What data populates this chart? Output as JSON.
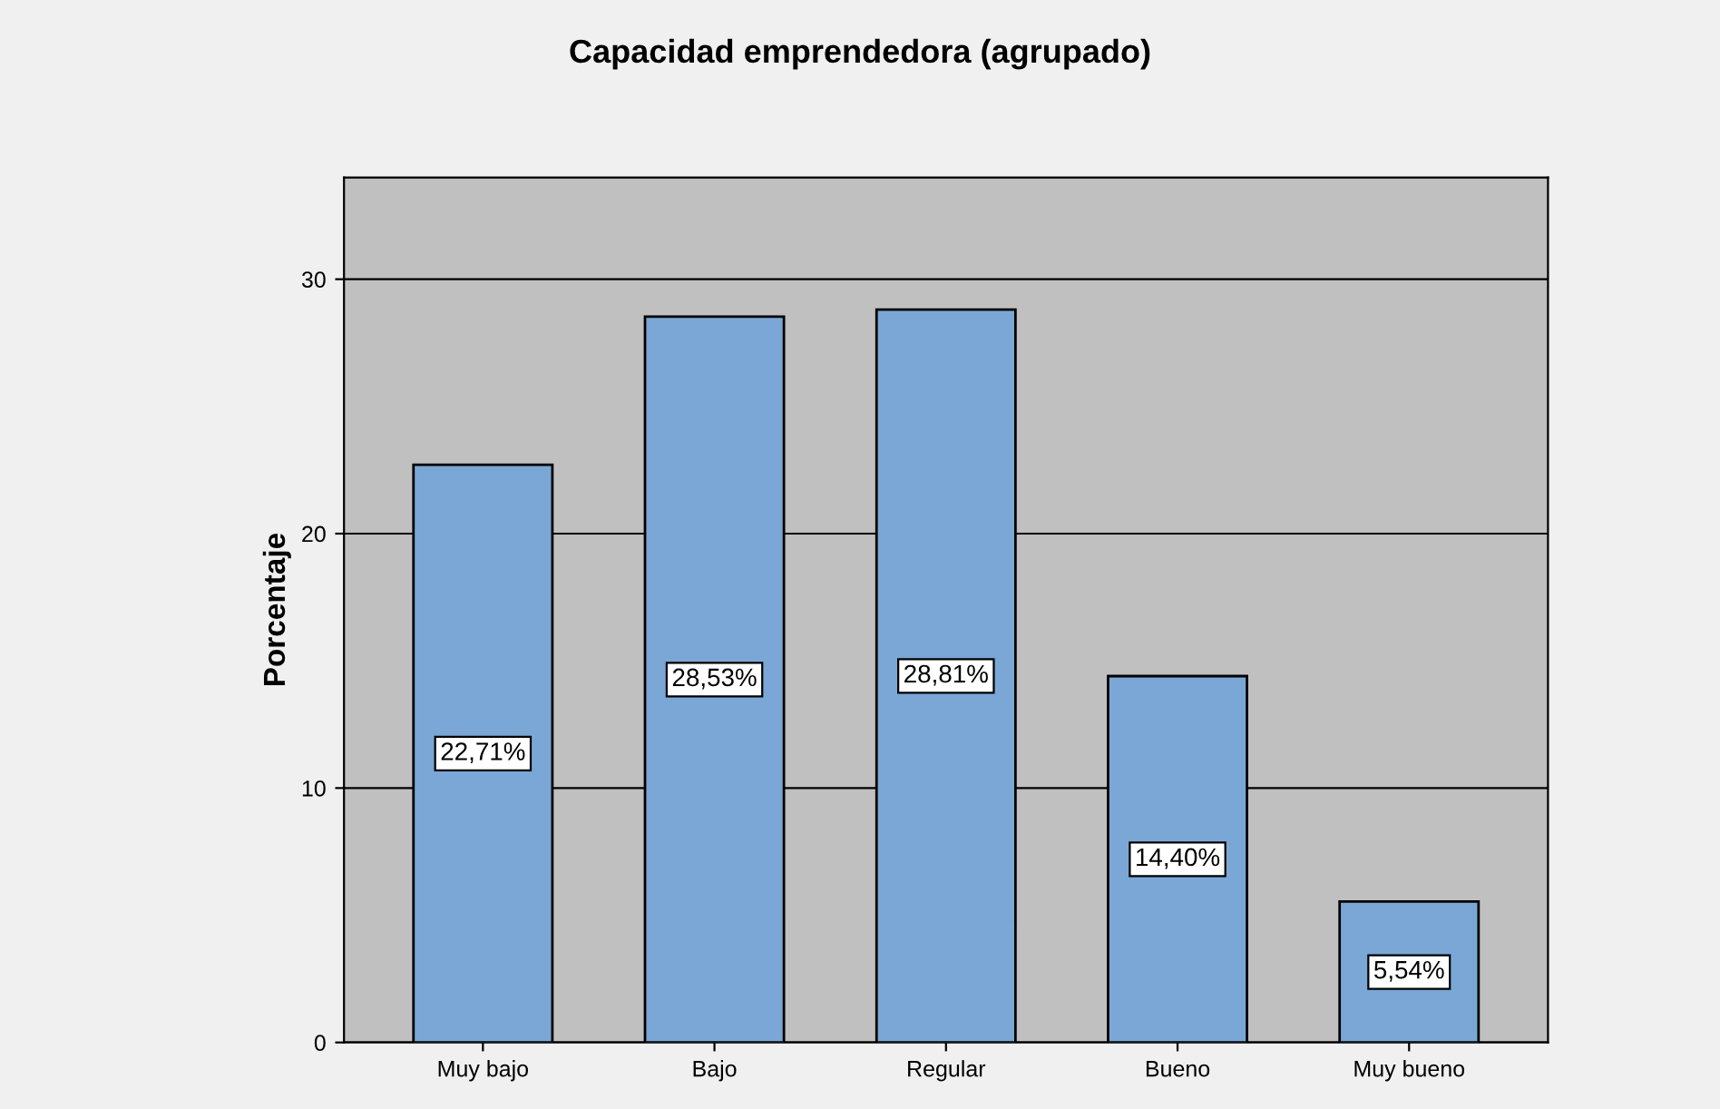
{
  "chart_data": {
    "type": "bar",
    "title": "Capacidad emprendedora (agrupado)",
    "ylabel": "Porcentaje",
    "categories": [
      "Muy bajo",
      "Bajo",
      "Regular",
      "Bueno",
      "Muy bueno"
    ],
    "values": [
      22.71,
      28.53,
      28.81,
      14.4,
      5.54
    ],
    "value_labels": [
      "22,71%",
      "28,53%",
      "28,81%",
      "14,40%",
      "5,54%"
    ],
    "color": "#7aa7d6",
    "ylim": [
      0,
      34
    ],
    "yticks": [
      0,
      10,
      20,
      30
    ],
    "grid": true
  }
}
